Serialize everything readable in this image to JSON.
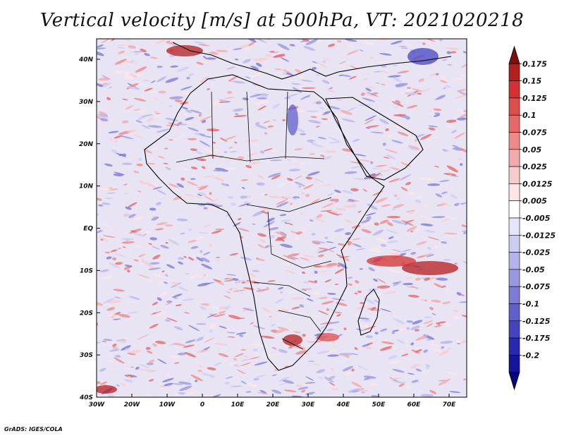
{
  "title": "Vertical velocity [m/s] at 500hPa, VT: 2021020218",
  "credit": "GrADS: IGES/COLA",
  "map": {
    "lon_range": [
      -30,
      75
    ],
    "lat_range": [
      -40,
      45
    ],
    "lat_ticks": [
      "40N",
      "30N",
      "20N",
      "10N",
      "EQ",
      "10S",
      "20S",
      "30S",
      "40S"
    ],
    "lon_ticks": [
      "30W",
      "20W",
      "10W",
      "0",
      "10E",
      "20E",
      "30E",
      "40E",
      "50E",
      "60E",
      "70E"
    ]
  },
  "colorbar": {
    "colors": [
      "#7f0e0e",
      "#b41e1e",
      "#d23232",
      "#dc4e4e",
      "#e46a6a",
      "#ec8a8a",
      "#f2aaaa",
      "#f8cccc",
      "#fce6e6",
      "#ffffff",
      "#e6e6fa",
      "#cdcdf2",
      "#b4b4ea",
      "#9898e0",
      "#7c7cd6",
      "#6060cc",
      "#4444c0",
      "#2828b0",
      "#14149c",
      "#050580"
    ],
    "labels": [
      "0.175",
      "0.15",
      "0.125",
      "0.1",
      "0.075",
      "0.05",
      "0.025",
      "0.0125",
      "0.005",
      "-0.005",
      "-0.0125",
      "-0.025",
      "-0.05",
      "-0.075",
      "-0.1",
      "-0.125",
      "-0.175",
      "-0.2"
    ]
  }
}
